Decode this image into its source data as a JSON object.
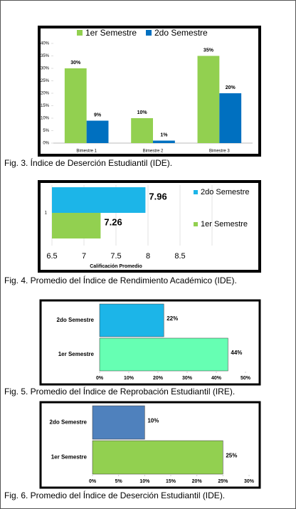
{
  "chart_data": [
    {
      "type": "bar",
      "caption": "Fig. 3.  Índice de Deserción Estudiantil (IDE).",
      "categories": [
        "Bimestre 1",
        "Bimestre 2",
        "Bimestre 3"
      ],
      "series": [
        {
          "name": "1er Semestre",
          "color": "#92d050",
          "values": [
            30,
            10,
            35
          ],
          "value_labels": [
            "30%",
            "10%",
            "35%"
          ]
        },
        {
          "name": "2do Semestre",
          "color": "#0070c0",
          "values": [
            9,
            1,
            20
          ],
          "value_labels": [
            "9%",
            "1%",
            "20%"
          ]
        }
      ],
      "ylim": [
        0,
        40
      ],
      "yticks": [
        {
          "value": 0,
          "label": "0%"
        },
        {
          "value": 5,
          "label": "5%"
        },
        {
          "value": 10,
          "label": "10%"
        },
        {
          "value": 15,
          "label": "15%"
        },
        {
          "value": 20,
          "label": "20%"
        },
        {
          "value": 25,
          "label": "25%"
        },
        {
          "value": 30,
          "label": "30%"
        },
        {
          "value": 35,
          "label": "35%"
        },
        {
          "value": 40,
          "label": "40%"
        }
      ],
      "grid": false,
      "legend": "top"
    },
    {
      "type": "barh",
      "caption": "Fig. 4.  Promedio del Índice de Rendimiento Académico (IDE).",
      "categories": [
        "1"
      ],
      "xlabel": "Calificación Promedio",
      "series": [
        {
          "name": "2do Semestre",
          "color": "#1cb5e8",
          "values": [
            7.96
          ]
        },
        {
          "name": "1er Semestre",
          "color": "#92d050",
          "values": [
            7.26
          ]
        }
      ],
      "xlim": [
        6.5,
        9
      ],
      "xticks": [
        6.5,
        7,
        7.5,
        8,
        8.5
      ],
      "grid": true,
      "legend": "right"
    },
    {
      "type": "barh",
      "caption": "Fig. 5.  Promedio del Índice de Reprobación Estudiantil (IRE).",
      "categories": [
        "2do Semestre",
        "1er Semestre"
      ],
      "values": [
        22,
        44
      ],
      "value_labels": [
        "22%",
        "44%"
      ],
      "colors": [
        "#1cb5e8",
        "#66ffb3"
      ],
      "xlim": [
        0,
        50
      ],
      "xticks": [
        {
          "value": 0,
          "label": "0%"
        },
        {
          "value": 10,
          "label": "10%"
        },
        {
          "value": 20,
          "label": "20%"
        },
        {
          "value": 30,
          "label": "30%"
        },
        {
          "value": 40,
          "label": "40%"
        },
        {
          "value": 50,
          "label": "50%"
        }
      ],
      "grid": false
    },
    {
      "type": "barh",
      "caption": "Fig. 6.  Promedio del Índice de Deserción Estudiantil (IDE).",
      "categories": [
        "2do Semestre",
        "1er Semestre"
      ],
      "values": [
        10,
        25
      ],
      "value_labels": [
        "10%",
        "25%"
      ],
      "colors": [
        "#4f81bd",
        "#92d050"
      ],
      "xlim": [
        0,
        30
      ],
      "xticks": [
        {
          "value": 0,
          "label": "0%"
        },
        {
          "value": 5,
          "label": "5%"
        },
        {
          "value": 10,
          "label": "10%"
        },
        {
          "value": 15,
          "label": "15%"
        },
        {
          "value": 20,
          "label": "20%"
        },
        {
          "value": 25,
          "label": "25%"
        },
        {
          "value": 30,
          "label": "30%"
        }
      ],
      "grid": false
    }
  ]
}
